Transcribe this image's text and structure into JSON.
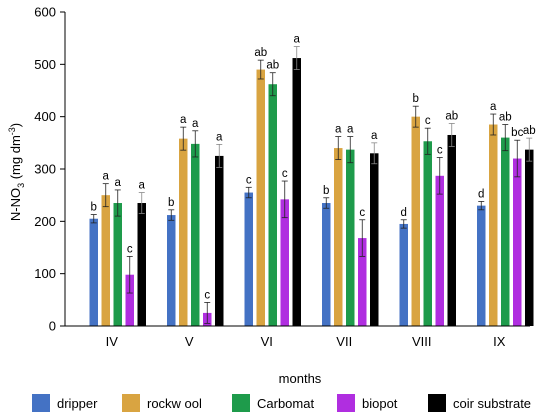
{
  "chart_data": {
    "type": "bar",
    "title": "",
    "xlabel": "months",
    "ylabel": "N-NO3 (mg dm-3)",
    "ylim": [
      0,
      600
    ],
    "yticks": [
      0,
      100,
      200,
      300,
      400,
      500,
      600
    ],
    "grid": false,
    "legend_position": "bottom",
    "categories": [
      "IV",
      "V",
      "VI",
      "VII",
      "VIII",
      "IX"
    ],
    "series": [
      {
        "name": "dripper",
        "color": "#4472c4",
        "values": [
          205,
          212,
          255,
          235,
          195,
          230
        ],
        "errors": [
          8,
          10,
          10,
          10,
          8,
          8
        ],
        "labels": [
          "b",
          "b",
          "c",
          "b",
          "d",
          "d"
        ]
      },
      {
        "name": "rockw ool",
        "color": "#d9a441",
        "values": [
          250,
          358,
          490,
          340,
          400,
          385
        ],
        "errors": [
          22,
          22,
          18,
          22,
          20,
          20
        ],
        "labels": [
          "a",
          "a",
          "ab",
          "a",
          "b",
          "a"
        ]
      },
      {
        "name": "Carbomat",
        "color": "#1e9b4b",
        "values": [
          235,
          348,
          462,
          337,
          353,
          360
        ],
        "errors": [
          25,
          25,
          22,
          25,
          25,
          25
        ],
        "labels": [
          "a",
          "a",
          "ab",
          "a",
          "c",
          "ab"
        ]
      },
      {
        "name": "biopot",
        "color": "#b02ee0",
        "values": [
          98,
          25,
          242,
          168,
          287,
          320
        ],
        "errors": [
          35,
          20,
          35,
          35,
          35,
          35
        ],
        "labels": [
          "c",
          "c",
          "c",
          "c",
          "c",
          "bc"
        ]
      },
      {
        "name": "coir substrate",
        "color": "#000000",
        "values": [
          235,
          325,
          512,
          330,
          365,
          337
        ],
        "errors": [
          20,
          22,
          22,
          20,
          22,
          22
        ],
        "labels": [
          "a",
          "a",
          "a",
          "a",
          "ab",
          "ab"
        ]
      }
    ]
  }
}
